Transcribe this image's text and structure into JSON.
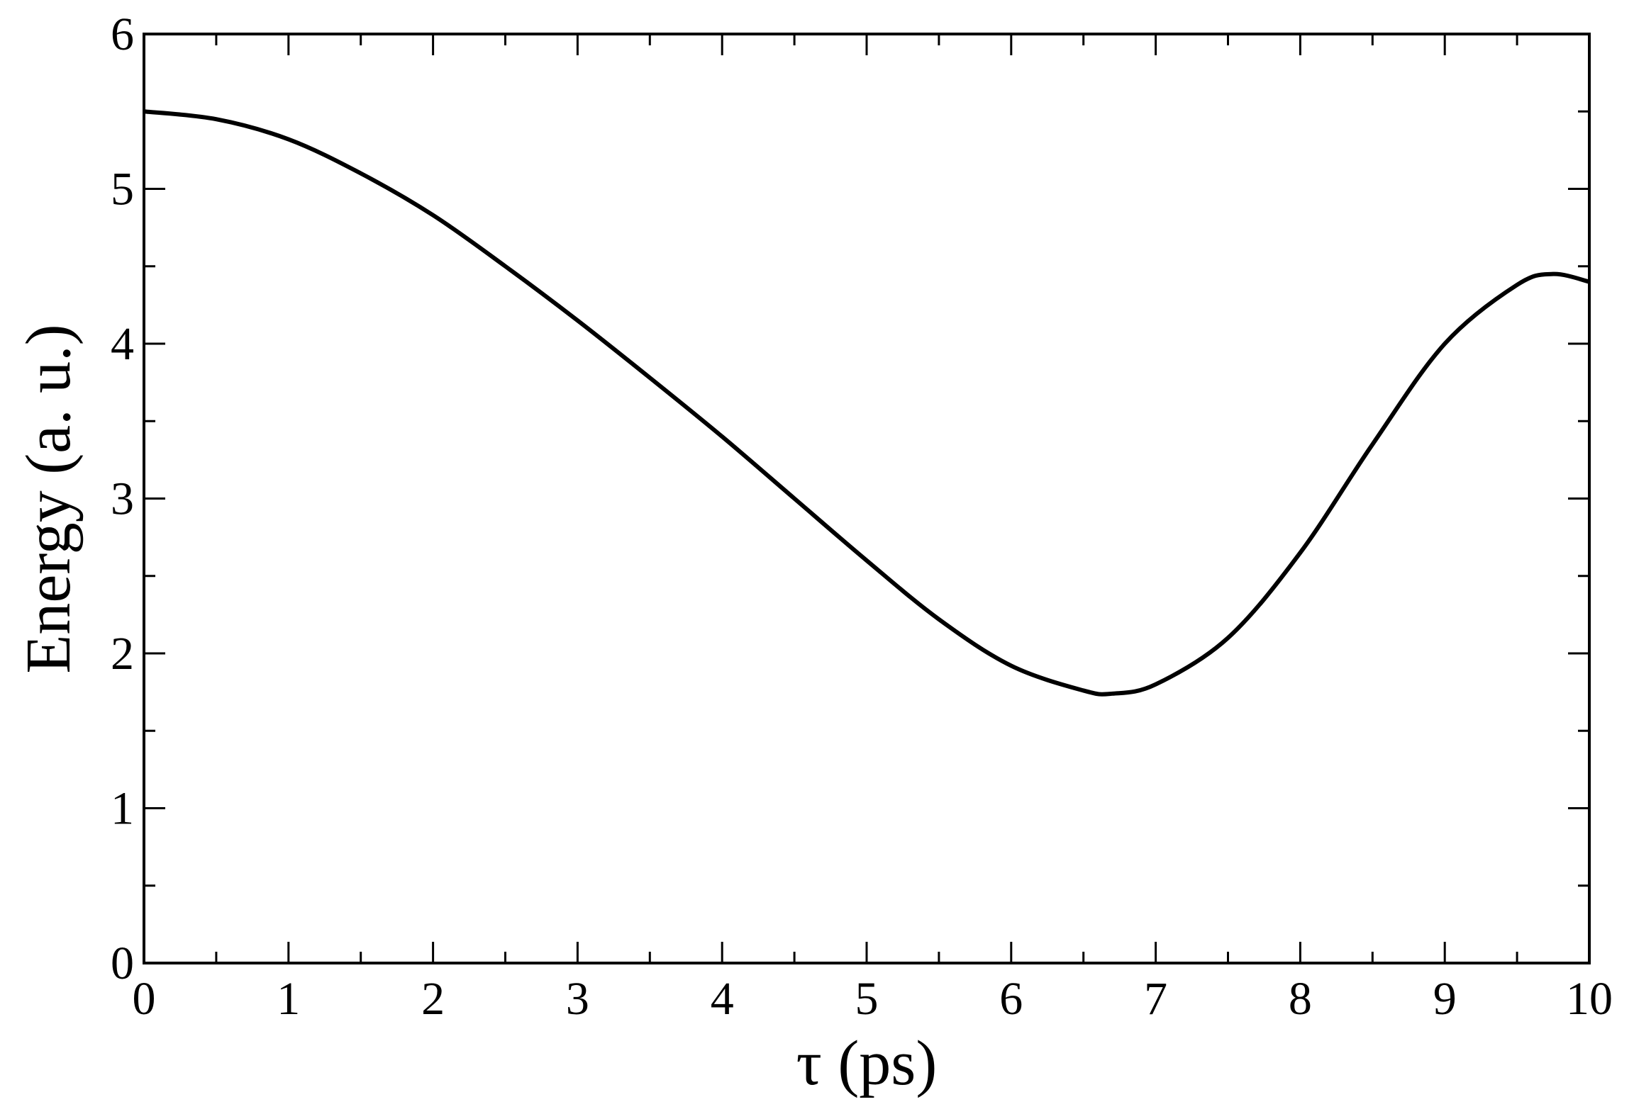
{
  "chart_data": {
    "type": "line",
    "x_label": "τ (ps)",
    "y_label": "Energy (a. u.)",
    "x": [
      0,
      0.5,
      1,
      1.5,
      2,
      2.5,
      3,
      3.5,
      4,
      4.5,
      5,
      5.5,
      6,
      6.5,
      6.7,
      7,
      7.5,
      8,
      8.5,
      9,
      9.5,
      9.75,
      10
    ],
    "series": [
      {
        "color": "#000000",
        "values": [
          5.5,
          5.45,
          5.32,
          5.1,
          4.83,
          4.5,
          4.15,
          3.78,
          3.4,
          3.0,
          2.6,
          2.22,
          1.92,
          1.76,
          1.74,
          1.8,
          2.1,
          2.65,
          3.35,
          4.0,
          4.38,
          4.45,
          4.4
        ]
      }
    ],
    "xlim": [
      0,
      10
    ],
    "xticks": [
      0,
      1,
      2,
      3,
      4,
      5,
      6,
      7,
      8,
      9,
      10
    ],
    "x_minor_ticks": [
      0.5,
      1.5,
      2.5,
      3.5,
      4.5,
      5.5,
      6.5,
      7.5,
      8.5,
      9.5
    ],
    "ylim": [
      0,
      6
    ],
    "yticks": [
      0,
      1,
      2,
      3,
      4,
      5,
      6
    ],
    "y_minor_ticks": [
      0.5,
      1.5,
      2.5,
      3.5,
      4.5,
      5.5
    ],
    "grid": false
  }
}
